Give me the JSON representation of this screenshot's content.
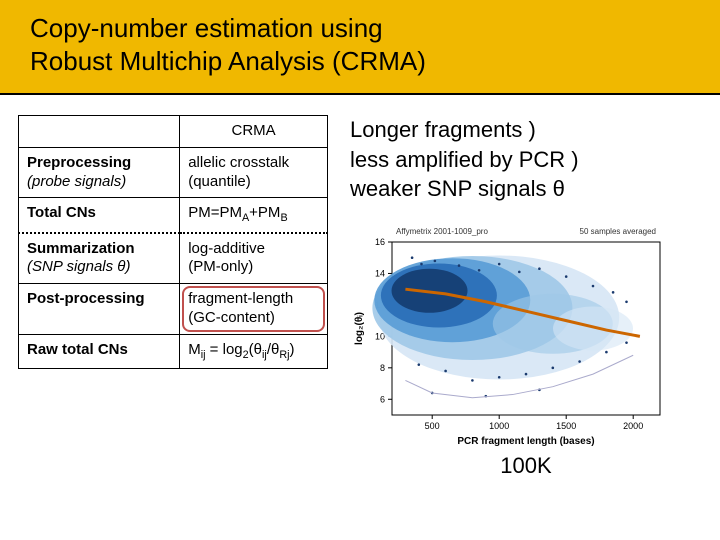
{
  "title_line1": "Copy-number estimation using",
  "title_line2": "Robust Multichip Analysis (CRMA)",
  "table": {
    "header_right": "CRMA",
    "rows": [
      {
        "l1": "Preprocessing",
        "l2": "(probe signals)",
        "l2it": true,
        "r1": "allelic crosstalk",
        "r2": "(quantile)"
      },
      {
        "l1": "Total CNs",
        "r1": "PM=PM",
        "r1subA": "A",
        "r1mid": "+PM",
        "r1subB": "B"
      },
      {
        "l1": "Summarization",
        "l2": "(SNP signals θ)",
        "l2it": true,
        "r1": "log-additive",
        "r2": "(PM-only)",
        "dotted": true
      },
      {
        "l1": "Post-processing",
        "r1": "fragment-length",
        "r2": "(GC-content)",
        "hl": true
      },
      {
        "l1": "Raw total CNs",
        "rformula": true
      }
    ]
  },
  "right_text": {
    "l1": "Longer fragments )",
    "l2": "less amplified by PCR )",
    "l3": "weaker SNP signals θ"
  },
  "chart": {
    "title": "Affymetrix 2001-1009_pro",
    "title2": "50 samples averaged",
    "ylabel": "log₂(θᵢ)",
    "xlabel": "PCR fragment length (bases)",
    "xlim": [
      200,
      2200
    ],
    "xtick_step": 500,
    "ylim": [
      5,
      16
    ],
    "ytick_step": 2,
    "bg": "#ffffff",
    "heatmap_colors": [
      "#d6e6f5",
      "#9ec8e8",
      "#5a9dd6",
      "#2b6fb8",
      "#163f75"
    ],
    "trend_color": "#cc6600",
    "footer_label": "100K"
  }
}
